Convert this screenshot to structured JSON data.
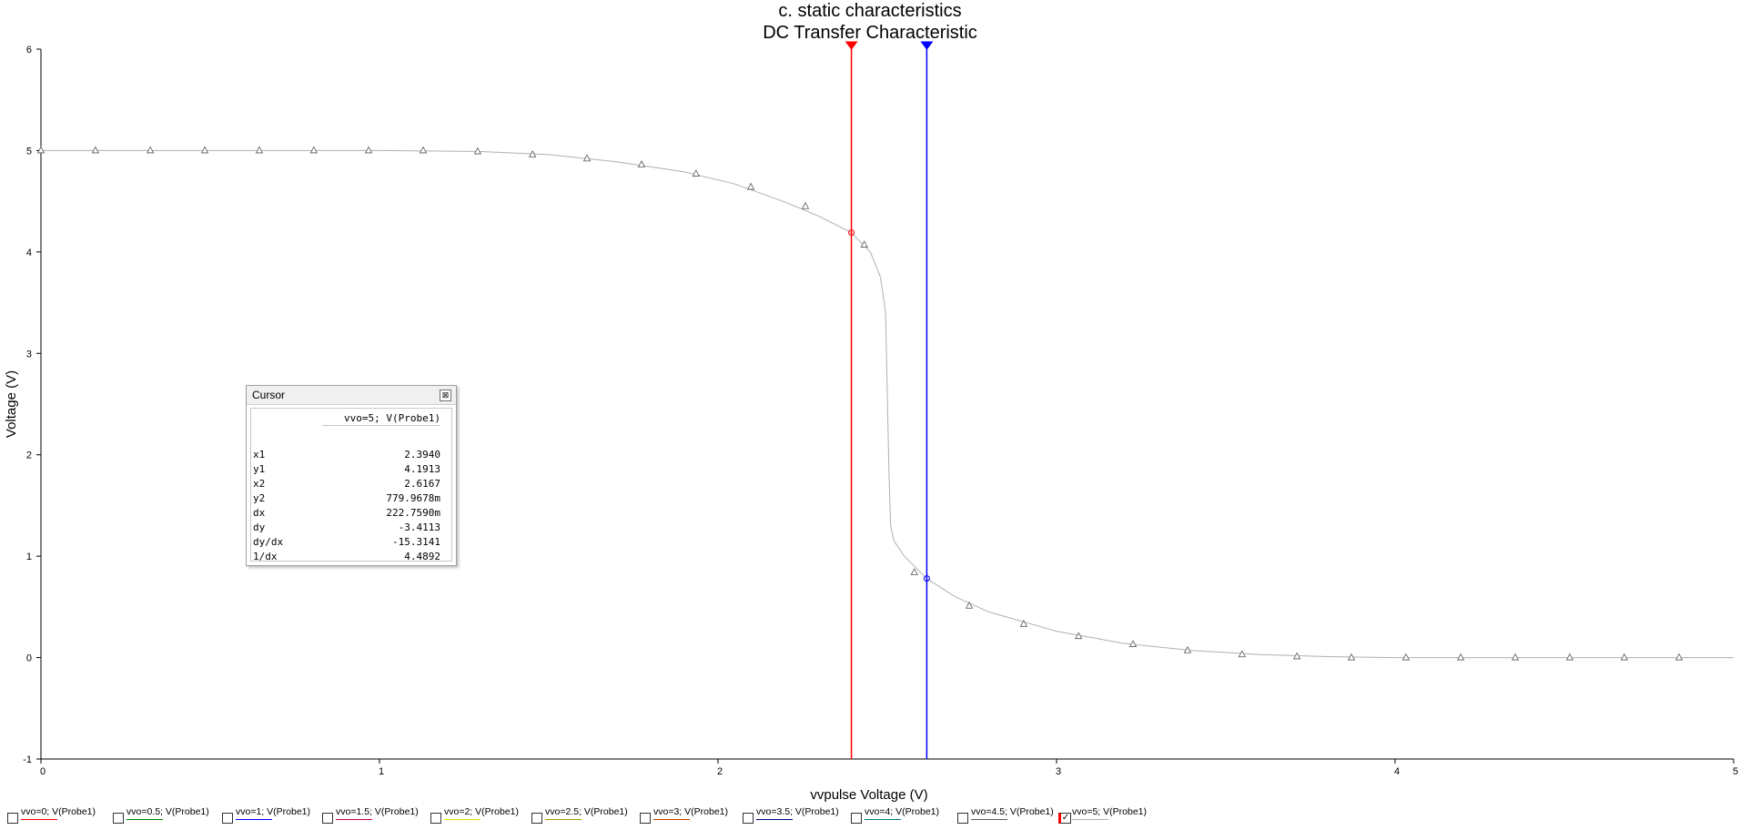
{
  "chart_data": {
    "type": "line",
    "title": "c. static characteristics",
    "subtitle": "DC Transfer Characteristic",
    "xlabel": "vvpulse Voltage (V)",
    "ylabel": "Voltage (V)",
    "xlim": [
      0,
      5
    ],
    "ylim": [
      -1,
      6
    ],
    "xticks": [
      "0",
      "1",
      "2",
      "3",
      "4",
      "5"
    ],
    "yticks": [
      "-1",
      "0",
      "1",
      "2",
      "3",
      "4",
      "5",
      "6"
    ],
    "grid": false,
    "series": [
      {
        "name": "vvo=5; V(Probe1)",
        "color": "#b0b0b0",
        "x": [
          0,
          0.5,
          1.0,
          1.3,
          1.5,
          1.7,
          1.9,
          2.05,
          2.2,
          2.3,
          2.394,
          2.45,
          2.48,
          2.495,
          2.5,
          2.505,
          2.51,
          2.52,
          2.55,
          2.617,
          2.7,
          2.8,
          3.0,
          3.2,
          3.4,
          3.6,
          3.8,
          4.0,
          4.5,
          5.0
        ],
        "y": [
          5.0,
          5.0,
          5.0,
          4.99,
          4.96,
          4.89,
          4.79,
          4.67,
          4.49,
          4.35,
          4.19,
          4.0,
          3.75,
          3.4,
          2.6,
          1.8,
          1.3,
          1.15,
          1.0,
          0.78,
          0.6,
          0.45,
          0.26,
          0.14,
          0.07,
          0.03,
          0.01,
          0.0,
          0.0,
          0.0
        ]
      }
    ],
    "markers": {
      "x": [
        0.0,
        0.161,
        0.323,
        0.484,
        0.645,
        0.806,
        0.968,
        1.129,
        1.29,
        1.452,
        1.613,
        1.774,
        1.935,
        2.097,
        2.258,
        2.432,
        2.58,
        2.742,
        2.903,
        3.065,
        3.226,
        3.387,
        3.548,
        3.71,
        3.871,
        4.032,
        4.194,
        4.355,
        4.516,
        4.677,
        4.839
      ],
      "y": [
        5.0,
        5.0,
        5.0,
        5.0,
        5.0,
        5.0,
        5.0,
        5.0,
        4.99,
        4.96,
        4.92,
        4.86,
        4.77,
        4.64,
        4.45,
        4.07,
        0.84,
        0.51,
        0.33,
        0.21,
        0.13,
        0.07,
        0.03,
        0.01,
        0.0,
        0.0,
        0.0,
        0.0,
        0.0,
        0.0,
        0.0
      ]
    },
    "cursors": [
      {
        "name": "cursor 1",
        "x": 2.394,
        "y": 4.1913,
        "color": "#ff0000"
      },
      {
        "name": "cursor 2",
        "x": 2.6167,
        "y": 0.7799678,
        "color": "#0000ff"
      }
    ]
  },
  "cursor_panel": {
    "title": "Cursor",
    "close_glyph": "⊠",
    "column_header": "vvo=5; V(Probe1)",
    "rows": [
      {
        "label": "x1",
        "value": "2.3940"
      },
      {
        "label": "y1",
        "value": "4.1913"
      },
      {
        "label": "x2",
        "value": "2.6167"
      },
      {
        "label": "y2",
        "value": "779.9678m"
      },
      {
        "label": "dx",
        "value": "222.7590m"
      },
      {
        "label": "dy",
        "value": "-3.4113"
      },
      {
        "label": "dy/dx",
        "value": "-15.3141"
      },
      {
        "label": "1/dx",
        "value": "4.4892"
      }
    ]
  },
  "legend": [
    {
      "label": "vvo=0; V(Probe1)",
      "color": "#ff0000",
      "checked": false
    },
    {
      "label": "vvo=0.5; V(Probe1)",
      "color": "#008000",
      "checked": false
    },
    {
      "label": "vvo=1; V(Probe1)",
      "color": "#0000ff",
      "checked": false
    },
    {
      "label": "vvo=1.5; V(Probe1)",
      "color": "#c00040",
      "checked": false
    },
    {
      "label": "vvo=2; V(Probe1)",
      "color": "#e0e000",
      "checked": false
    },
    {
      "label": "vvo=2.5; V(Probe1)",
      "color": "#a0a000",
      "checked": false
    },
    {
      "label": "vvo=3; V(Probe1)",
      "color": "#c04000",
      "checked": false
    },
    {
      "label": "vvo=3.5; V(Probe1)",
      "color": "#000080",
      "checked": false
    },
    {
      "label": "vvo=4; V(Probe1)",
      "color": "#008080",
      "checked": false
    },
    {
      "label": "vvo=4.5; V(Probe1)",
      "color": "#606060",
      "checked": false
    },
    {
      "label": "vvo=5; V(Probe1)",
      "color": "#b0b0b0",
      "checked": true
    }
  ]
}
